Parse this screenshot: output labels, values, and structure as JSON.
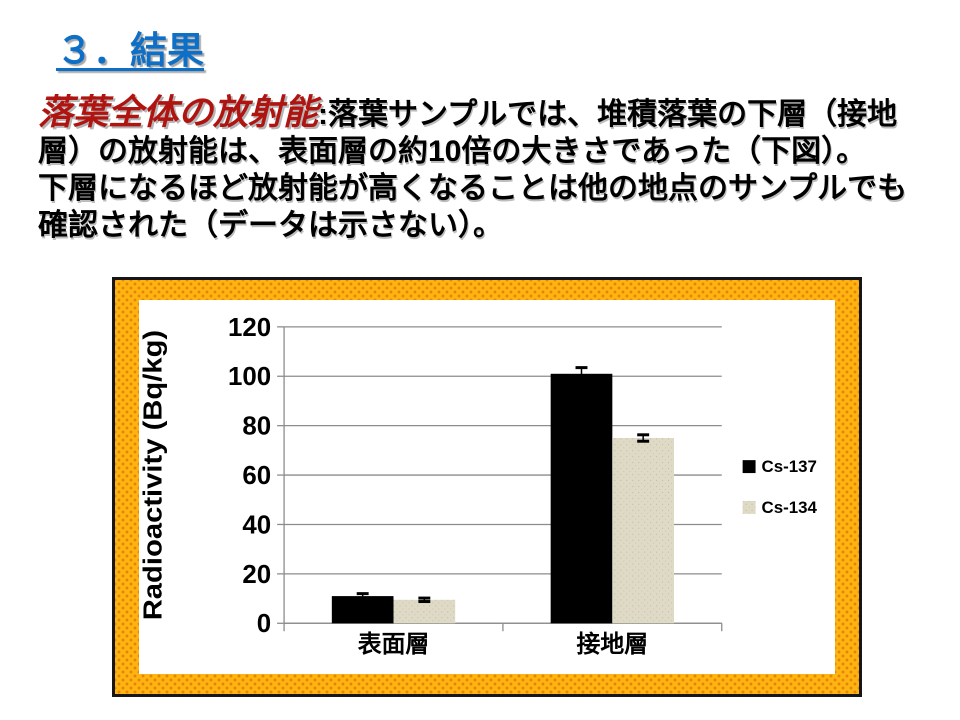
{
  "slide": {
    "title": "３．結果",
    "paragraph1": {
      "highlight": "落葉全体の放射能",
      "rest": ":落葉サンプルでは、堆積落葉の下層（接地層）の放射能は、表面層の約10倍の大きさであった（下図）。"
    },
    "paragraph2": "下層になるほど放射能が高くなることは他の地点のサンプルでも確認された（データは示さない）。"
  },
  "colors": {
    "title_blue": "#0E6FC6",
    "highlight_red": "#B01410",
    "frame_orange": "#FFB411",
    "frame_dot": "#E5860A",
    "grid_gray": "#8C8C8C",
    "bar_cs137": "#000000",
    "bar_cs134": "#DEDAC6"
  },
  "chart_data": {
    "type": "bar",
    "title": "",
    "xlabel": "",
    "ylabel": "Radioactivity (Bq/kg)",
    "categories": [
      "表面層",
      "接地層"
    ],
    "series": [
      {
        "name": "Cs-137",
        "color": "#000000",
        "values": [
          11,
          101
        ],
        "errors": [
          1,
          2.5
        ]
      },
      {
        "name": "Cs-134",
        "color": "#DEDAC6",
        "values": [
          9.5,
          75
        ],
        "errors": [
          0.7,
          1.3
        ]
      }
    ],
    "ylim": [
      0,
      120
    ],
    "ytick_step": 20,
    "grid": true,
    "legend_position": "right"
  }
}
